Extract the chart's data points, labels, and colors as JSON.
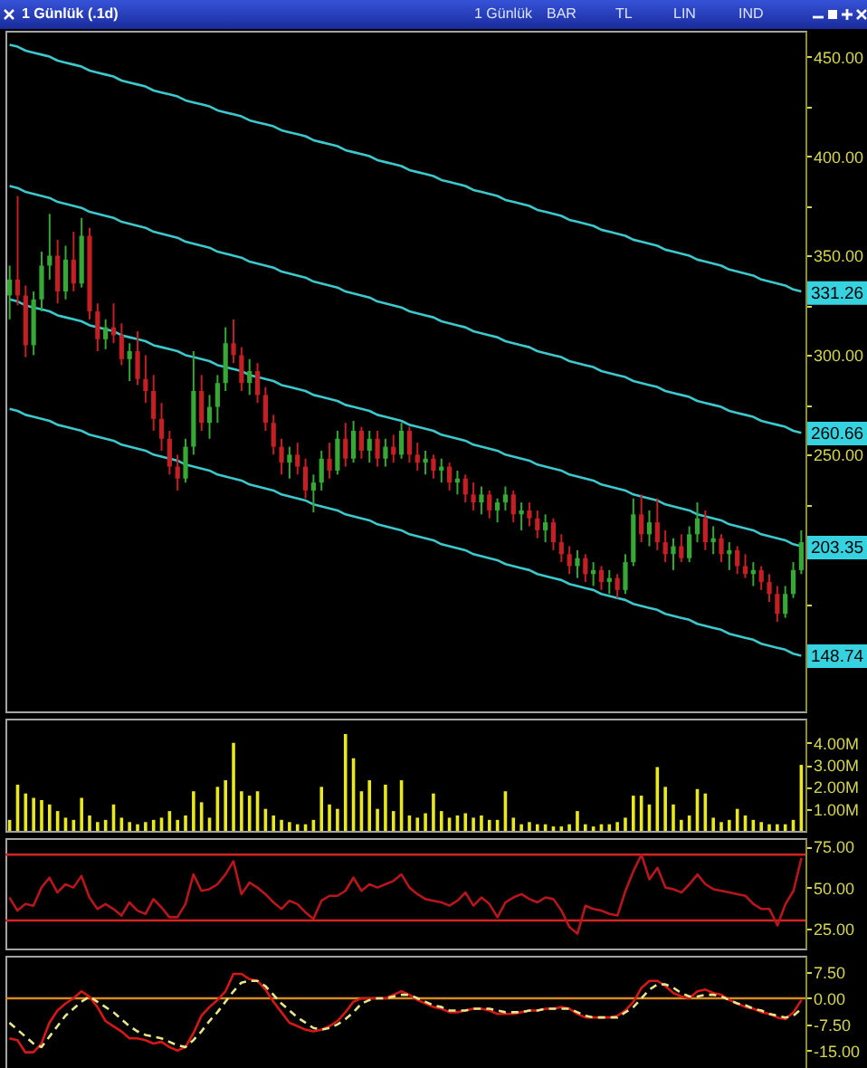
{
  "chart_data": [
    {
      "type": "candlestick",
      "title": "1 Günlük (.1d)",
      "annotations": [
        "1 Günlük",
        "BAR",
        "TL",
        "LIN",
        "IND",
        {
          "text": "331.26",
          "y": 331.26
        },
        {
          "text": "260.66",
          "y": 260.66
        },
        {
          "text": "203.35",
          "y": 203.35
        },
        {
          "text": "148.74",
          "y": 148.74
        }
      ],
      "categories": [
        null,
        null,
        null,
        null,
        null,
        null,
        null,
        null,
        null,
        null,
        null,
        null,
        null,
        null,
        null,
        null,
        null,
        null,
        null,
        null,
        null,
        null,
        null,
        null,
        null,
        null,
        null,
        null,
        null,
        null,
        null,
        null,
        null,
        null,
        null,
        null,
        null,
        null,
        null,
        null,
        null,
        null,
        null,
        null,
        null,
        null,
        null,
        null,
        null,
        null,
        null,
        null,
        null,
        null,
        null,
        null,
        null,
        null,
        null,
        null,
        null,
        null,
        null,
        null,
        null,
        null,
        null,
        null,
        null,
        null,
        null,
        null,
        null,
        null,
        null,
        null,
        null,
        null,
        null,
        null,
        null,
        null,
        null,
        null,
        null,
        null,
        null,
        null,
        null,
        null,
        null,
        null,
        null,
        null,
        null,
        null,
        null,
        null,
        null,
        null
      ],
      "ohlc": [
        [
          330,
          345,
          318,
          338
        ],
        [
          338,
          380,
          325,
          330
        ],
        [
          330,
          335,
          299,
          305
        ],
        [
          305,
          332,
          300,
          328
        ],
        [
          328,
          352,
          322,
          345
        ],
        [
          345,
          371,
          338,
          350
        ],
        [
          350,
          358,
          326,
          332
        ],
        [
          332,
          355,
          328,
          348
        ],
        [
          348,
          362,
          332,
          336
        ],
        [
          336,
          369,
          334,
          360
        ],
        [
          360,
          364,
          318,
          322
        ],
        [
          322,
          326,
          302,
          308
        ],
        [
          308,
          318,
          303,
          314
        ],
        [
          314,
          326,
          306,
          310
        ],
        [
          310,
          316,
          295,
          298
        ],
        [
          298,
          306,
          287,
          302
        ],
        [
          302,
          312,
          285,
          288
        ],
        [
          288,
          300,
          276,
          282
        ],
        [
          282,
          290,
          262,
          268
        ],
        [
          268,
          276,
          252,
          258
        ],
        [
          258,
          262,
          240,
          244
        ],
        [
          244,
          250,
          232,
          238
        ],
        [
          238,
          258,
          236,
          254
        ],
        [
          254,
          302,
          250,
          282
        ],
        [
          282,
          290,
          262,
          266
        ],
        [
          266,
          280,
          258,
          274
        ],
        [
          274,
          290,
          266,
          286
        ],
        [
          286,
          314,
          282,
          306
        ],
        [
          306,
          318,
          296,
          300
        ],
        [
          300,
          304,
          282,
          286
        ],
        [
          286,
          298,
          280,
          292
        ],
        [
          292,
          296,
          276,
          280
        ],
        [
          280,
          284,
          262,
          266
        ],
        [
          266,
          270,
          250,
          254
        ],
        [
          254,
          258,
          240,
          246
        ],
        [
          246,
          254,
          238,
          250
        ],
        [
          250,
          256,
          240,
          244
        ],
        [
          244,
          248,
          228,
          232
        ],
        [
          232,
          240,
          221,
          236
        ],
        [
          236,
          252,
          232,
          248
        ],
        [
          248,
          256,
          238,
          242
        ],
        [
          242,
          262,
          240,
          258
        ],
        [
          258,
          266,
          244,
          248
        ],
        [
          248,
          267,
          246,
          262
        ],
        [
          262,
          264,
          248,
          252
        ],
        [
          252,
          262,
          246,
          258
        ],
        [
          258,
          262,
          244,
          248
        ],
        [
          248,
          258,
          244,
          254
        ],
        [
          254,
          260,
          246,
          250
        ],
        [
          250,
          266,
          248,
          262
        ],
        [
          262,
          264,
          246,
          250
        ],
        [
          250,
          256,
          242,
          246
        ],
        [
          246,
          252,
          240,
          248
        ],
        [
          248,
          250,
          238,
          242
        ],
        [
          242,
          248,
          236,
          244
        ],
        [
          244,
          246,
          232,
          236
        ],
        [
          236,
          242,
          230,
          238
        ],
        [
          238,
          240,
          226,
          230
        ],
        [
          230,
          236,
          222,
          226
        ],
        [
          226,
          234,
          220,
          230
        ],
        [
          230,
          232,
          218,
          222
        ],
        [
          222,
          228,
          216,
          226
        ],
        [
          226,
          234,
          222,
          230
        ],
        [
          230,
          232,
          216,
          220
        ],
        [
          220,
          226,
          212,
          222
        ],
        [
          222,
          226,
          214,
          218
        ],
        [
          218,
          222,
          208,
          212
        ],
        [
          212,
          220,
          206,
          216
        ],
        [
          216,
          218,
          202,
          206
        ],
        [
          206,
          210,
          196,
          200
        ],
        [
          200,
          204,
          190,
          194
        ],
        [
          194,
          202,
          188,
          198
        ],
        [
          198,
          200,
          186,
          190
        ],
        [
          190,
          196,
          184,
          192
        ],
        [
          192,
          194,
          182,
          186
        ],
        [
          186,
          192,
          180,
          188
        ],
        [
          188,
          190,
          178,
          182
        ],
        [
          182,
          200,
          180,
          196
        ],
        [
          196,
          228,
          194,
          220
        ],
        [
          220,
          230,
          206,
          210
        ],
        [
          210,
          222,
          204,
          216
        ],
        [
          216,
          228,
          202,
          206
        ],
        [
          206,
          212,
          196,
          200
        ],
        [
          200,
          208,
          192,
          204
        ],
        [
          204,
          210,
          196,
          198
        ],
        [
          198,
          214,
          196,
          210
        ],
        [
          210,
          226,
          206,
          218
        ],
        [
          218,
          222,
          202,
          206
        ],
        [
          206,
          214,
          200,
          208
        ],
        [
          208,
          210,
          196,
          200
        ],
        [
          200,
          206,
          192,
          202
        ],
        [
          202,
          204,
          190,
          194
        ],
        [
          194,
          200,
          188,
          190
        ],
        [
          190,
          196,
          184,
          192
        ],
        [
          192,
          194,
          182,
          186
        ],
        [
          186,
          190,
          176,
          180
        ],
        [
          180,
          184,
          166,
          170
        ],
        [
          170,
          184,
          168,
          180
        ],
        [
          180,
          196,
          178,
          192
        ],
        [
          192,
          212,
          190,
          206
        ]
      ],
      "colors": [
        "#35a835",
        "#c41f24",
        "#c41f24",
        "#35a835",
        "#35a835",
        "#35a835",
        "#c41f24",
        "#35a835",
        "#c41f24",
        "#35a835",
        "#c41f24",
        "#c41f24",
        "#35a835",
        "#c41f24",
        "#c41f24",
        "#35a835",
        "#c41f24",
        "#c41f24",
        "#c41f24",
        "#c41f24",
        "#c41f24",
        "#c41f24",
        "#35a835",
        "#35a835",
        "#c41f24",
        "#35a835",
        "#35a835",
        "#35a835",
        "#c41f24",
        "#c41f24",
        "#35a835",
        "#c41f24",
        "#c41f24",
        "#c41f24",
        "#c41f24",
        "#35a835",
        "#c41f24",
        "#c41f24",
        "#35a835",
        "#35a835",
        "#c41f24",
        "#35a835",
        "#c41f24",
        "#35a835",
        "#c41f24",
        "#35a835",
        "#c41f24",
        "#35a835",
        "#c41f24",
        "#35a835",
        "#c41f24",
        "#c41f24",
        "#35a835",
        "#c41f24",
        "#35a835",
        "#c41f24",
        "#35a835",
        "#c41f24",
        "#c41f24",
        "#35a835",
        "#c41f24",
        "#35a835",
        "#35a835",
        "#c41f24",
        "#35a835",
        "#c41f24",
        "#c41f24",
        "#35a835",
        "#c41f24",
        "#c41f24",
        "#c41f24",
        "#35a835",
        "#c41f24",
        "#35a835",
        "#c41f24",
        "#35a835",
        "#c41f24",
        "#35a835",
        "#35a835",
        "#c41f24",
        "#35a835",
        "#c41f24",
        "#c41f24",
        "#35a835",
        "#c41f24",
        "#35a835",
        "#35a835",
        "#c41f24",
        "#35a835",
        "#c41f24",
        "#35a835",
        "#c41f24",
        "#c41f24",
        "#35a835",
        "#c41f24",
        "#c41f24",
        "#c41f24",
        "#35a835",
        "#35a835",
        "#35a835"
      ],
      "series": [
        {
          "type": "line",
          "color": "#3cc8cc",
          "values": [
            456,
            455,
            453,
            452,
            451,
            450,
            448,
            447,
            446,
            445,
            443,
            442,
            441,
            440,
            438,
            437,
            436,
            435,
            433,
            432,
            431,
            430,
            428,
            427,
            426,
            425,
            423,
            422,
            421,
            420,
            418,
            417,
            416,
            415,
            413,
            412,
            411,
            410,
            408,
            407,
            406,
            405,
            403,
            402,
            401,
            400,
            398,
            397,
            396,
            395,
            393,
            392,
            391,
            390,
            388,
            387,
            386,
            385,
            383,
            382,
            381,
            380,
            378,
            377,
            376,
            375,
            373,
            372,
            371,
            370,
            368,
            367,
            366,
            365,
            363,
            362,
            361,
            360,
            358,
            357,
            356,
            355,
            353,
            352,
            351,
            350,
            348,
            347,
            346,
            345,
            343,
            342,
            341,
            340,
            338,
            337,
            336,
            335,
            333,
            332
          ]
        },
        {
          "type": "line",
          "color": "#3cc8cc",
          "values": [
            385,
            384,
            382,
            381,
            380,
            379,
            377,
            376,
            375,
            374,
            372,
            371,
            370,
            369,
            367,
            366,
            365,
            364,
            362,
            361,
            360,
            359,
            357,
            356,
            355,
            354,
            352,
            351,
            350,
            349,
            347,
            346,
            345,
            344,
            342,
            341,
            340,
            339,
            337,
            336,
            335,
            334,
            332,
            331,
            330,
            329,
            327,
            326,
            325,
            324,
            322,
            321,
            320,
            319,
            317,
            316,
            315,
            314,
            312,
            311,
            310,
            309,
            307,
            306,
            305,
            304,
            302,
            301,
            300,
            299,
            297,
            296,
            295,
            294,
            292,
            291,
            290,
            289,
            287,
            286,
            285,
            284,
            282,
            281,
            280,
            279,
            277,
            276,
            275,
            274,
            272,
            271,
            270,
            269,
            267,
            266,
            265,
            264,
            262,
            261
          ]
        },
        {
          "type": "line",
          "color": "#3cc8cc",
          "values": [
            328,
            327,
            325,
            324,
            323,
            322,
            320,
            319,
            318,
            317,
            315,
            314,
            313,
            312,
            310,
            309,
            308,
            307,
            305,
            304,
            303,
            302,
            300,
            299,
            298,
            297,
            295,
            294,
            293,
            292,
            290,
            289,
            288,
            287,
            285,
            284,
            283,
            282,
            280,
            279,
            278,
            277,
            275,
            274,
            273,
            272,
            270,
            269,
            268,
            267,
            265,
            264,
            263,
            262,
            260,
            259,
            258,
            257,
            255,
            254,
            253,
            252,
            250,
            249,
            248,
            247,
            245,
            244,
            243,
            242,
            240,
            239,
            238,
            237,
            235,
            234,
            233,
            232,
            230,
            229,
            228,
            227,
            225,
            224,
            223,
            222,
            220,
            219,
            218,
            217,
            215,
            214,
            213,
            212,
            210,
            209,
            208,
            207,
            205,
            204
          ]
        },
        {
          "type": "line",
          "color": "#3cc8cc",
          "values": [
            273,
            272,
            270,
            269,
            268,
            267,
            265,
            264,
            263,
            262,
            260,
            259,
            258,
            257,
            255,
            254,
            253,
            252,
            250,
            249,
            248,
            247,
            245,
            244,
            243,
            242,
            240,
            239,
            238,
            237,
            235,
            234,
            233,
            232,
            230,
            229,
            228,
            227,
            225,
            224,
            223,
            222,
            220,
            219,
            218,
            217,
            215,
            214,
            213,
            212,
            210,
            209,
            208,
            207,
            205,
            204,
            203,
            202,
            200,
            199,
            198,
            197,
            195,
            194,
            193,
            192,
            190,
            189,
            188,
            187,
            185,
            184,
            183,
            182,
            180,
            179,
            178,
            177,
            175,
            174,
            173,
            172,
            170,
            169,
            168,
            167,
            165,
            164,
            163,
            162,
            160,
            159,
            158,
            157,
            155,
            154,
            153,
            152,
            150,
            149
          ]
        }
      ],
      "ylim": [
        121,
        463
      ],
      "yticks": [
        {
          "value": 175,
          "label": null
        },
        {
          "value": 225,
          "label": null
        },
        {
          "value": 250,
          "label": "250.00"
        },
        {
          "value": 275,
          "label": null
        },
        {
          "value": 300,
          "label": "300.00"
        },
        {
          "value": 325,
          "label": null
        },
        {
          "value": 350,
          "label": "350.00"
        },
        {
          "value": 375,
          "label": null
        },
        {
          "value": 400,
          "label": "400.00"
        },
        {
          "value": 425,
          "label": null
        },
        {
          "value": 450,
          "label": "450.00"
        }
      ],
      "tick_labels": "y"
    },
    {
      "type": "bar",
      "categories": [
        null,
        null,
        null,
        null,
        null,
        null,
        null,
        null,
        null,
        null,
        null,
        null,
        null,
        null,
        null,
        null,
        null,
        null,
        null,
        null,
        null,
        null,
        null,
        null,
        null,
        null,
        null,
        null,
        null,
        null,
        null,
        null,
        null,
        null,
        null,
        null,
        null,
        null,
        null,
        null,
        null,
        null,
        null,
        null,
        null,
        null,
        null,
        null,
        null,
        null,
        null,
        null,
        null,
        null,
        null,
        null,
        null,
        null,
        null,
        null,
        null,
        null,
        null,
        null,
        null,
        null,
        null,
        null,
        null,
        null,
        null,
        null,
        null,
        null,
        null,
        null,
        null,
        null,
        null,
        null,
        null,
        null,
        null,
        null,
        null,
        null,
        null,
        null,
        null,
        null,
        null,
        null,
        null,
        null,
        null,
        null,
        null,
        null,
        null,
        null
      ],
      "values": [
        0.5,
        2.1,
        1.7,
        1.5,
        1.4,
        1.2,
        0.9,
        0.6,
        0.5,
        1.5,
        0.7,
        0.4,
        0.5,
        1.2,
        0.6,
        0.4,
        0.3,
        0.4,
        0.5,
        0.6,
        0.9,
        0.5,
        0.7,
        1.8,
        1.3,
        0.6,
        2.0,
        2.3,
        4.0,
        1.8,
        1.6,
        1.8,
        1.0,
        0.7,
        0.5,
        0.4,
        0.3,
        0.3,
        0.5,
        2.0,
        1.2,
        1.0,
        4.4,
        3.3,
        1.8,
        2.3,
        1.0,
        2.1,
        0.9,
        2.3,
        0.7,
        0.6,
        0.8,
        1.7,
        0.9,
        0.6,
        0.7,
        0.8,
        0.6,
        0.7,
        0.5,
        0.5,
        1.8,
        0.6,
        0.3,
        0.4,
        0.3,
        0.3,
        0.2,
        0.2,
        0.3,
        0.9,
        0.3,
        0.2,
        0.3,
        0.3,
        0.4,
        0.6,
        1.6,
        1.6,
        1.2,
        2.9,
        2.0,
        1.2,
        0.5,
        0.7,
        1.9,
        1.7,
        0.6,
        0.4,
        0.5,
        1.0,
        0.7,
        0.5,
        0.4,
        0.3,
        0.3,
        0.3,
        0.5,
        3.0
      ],
      "color": "#e8e81c",
      "ylim": [
        0,
        5.1
      ],
      "yticks": [
        {
          "value": 1,
          "label": "1.00M"
        },
        {
          "value": 2,
          "label": "2.00M"
        },
        {
          "value": 3,
          "label": "3.00M"
        },
        {
          "value": 4,
          "label": "4.00M"
        }
      ],
      "tick_labels": "y"
    },
    {
      "type": "line",
      "categories": [
        null,
        null,
        null,
        null,
        null,
        null,
        null,
        null,
        null,
        null,
        null,
        null,
        null,
        null,
        null,
        null,
        null,
        null,
        null,
        null,
        null,
        null,
        null,
        null,
        null,
        null,
        null,
        null,
        null,
        null,
        null,
        null,
        null,
        null,
        null,
        null,
        null,
        null,
        null,
        null,
        null,
        null,
        null,
        null,
        null,
        null,
        null,
        null,
        null,
        null,
        null,
        null,
        null,
        null,
        null,
        null,
        null,
        null,
        null,
        null,
        null,
        null,
        null,
        null,
        null,
        null,
        null,
        null,
        null,
        null,
        null,
        null,
        null,
        null,
        null,
        null,
        null,
        null,
        null,
        null,
        null,
        null,
        null,
        null,
        null,
        null,
        null,
        null,
        null,
        null,
        null,
        null,
        null,
        null,
        null,
        null,
        null,
        null,
        null,
        null
      ],
      "series": [
        {
          "color": "#b8161c",
          "values": [
            44,
            36,
            40,
            39,
            50,
            56,
            47,
            52,
            50,
            57,
            44,
            37,
            40,
            37,
            33,
            41,
            36,
            34,
            43,
            38,
            32,
            32,
            40,
            58,
            48,
            49,
            52,
            58,
            66,
            46,
            53,
            50,
            46,
            41,
            37,
            42,
            40,
            35,
            31,
            42,
            45,
            45,
            48,
            56,
            48,
            52,
            50,
            52,
            54,
            58,
            50,
            46,
            43,
            42,
            41,
            39,
            42,
            47,
            39,
            44,
            40,
            32,
            41,
            44,
            46,
            43,
            41,
            44,
            43,
            36,
            26,
            22,
            39,
            37,
            36,
            34,
            33,
            48,
            60,
            70,
            55,
            62,
            50,
            49,
            47,
            52,
            58,
            52,
            49,
            48,
            47,
            46,
            45,
            40,
            37,
            37,
            27,
            40,
            48,
            68
          ]
        }
      ],
      "ylim": [
        13,
        80
      ],
      "yticks": [
        {
          "value": 25,
          "label": "25.00"
        },
        {
          "value": 50,
          "label": "50.00"
        },
        {
          "value": 75,
          "label": "75.00"
        }
      ],
      "ref_lines": [
        {
          "axis": "y",
          "value": 70,
          "color": "#d42424"
        },
        {
          "axis": "y",
          "value": 30,
          "color": "#d42424"
        }
      ],
      "tick_labels": "y"
    },
    {
      "type": "line",
      "categories": [
        null,
        null,
        null,
        null,
        null,
        null,
        null,
        null,
        null,
        null,
        null,
        null,
        null,
        null,
        null,
        null,
        null,
        null,
        null,
        null,
        null,
        null,
        null,
        null,
        null,
        null,
        null,
        null,
        null,
        null,
        null,
        null,
        null,
        null,
        null,
        null,
        null,
        null,
        null,
        null,
        null,
        null,
        null,
        null,
        null,
        null,
        null,
        null,
        null,
        null,
        null,
        null,
        null,
        null,
        null,
        null,
        null,
        null,
        null,
        null,
        null,
        null,
        null,
        null,
        null,
        null,
        null,
        null,
        null,
        null,
        null,
        null,
        null,
        null,
        null,
        null,
        null,
        null,
        null,
        null,
        null,
        null,
        null,
        null,
        null,
        null,
        null,
        null,
        null,
        null,
        null,
        null,
        null,
        null,
        null,
        null,
        null,
        null,
        null,
        null
      ],
      "series": [
        {
          "color": "#d41818",
          "line_style": "solid",
          "values": [
            -11.5,
            -12,
            -15.5,
            -15.5,
            -13,
            -7,
            -3.5,
            -1.5,
            0,
            2,
            0.5,
            -2.5,
            -6.5,
            -8,
            -9.5,
            -11.5,
            -11.5,
            -12,
            -13,
            -12.5,
            -14,
            -15,
            -14,
            -10,
            -5,
            -2.5,
            -0.5,
            2,
            7,
            7,
            5.5,
            5,
            2.5,
            -1,
            -4,
            -7,
            -8,
            -9,
            -9.5,
            -9,
            -8,
            -6.5,
            -4,
            -1,
            0,
            0,
            0,
            0,
            1,
            2,
            1,
            -0.5,
            -1.5,
            -2.5,
            -3,
            -4,
            -4,
            -3.5,
            -3,
            -3,
            -3.5,
            -4.5,
            -4.5,
            -4.5,
            -4,
            -3.5,
            -3.5,
            -3,
            -3,
            -2.5,
            -3,
            -4.5,
            -5.5,
            -5.5,
            -5.5,
            -5.5,
            -5,
            -3.5,
            -1,
            3,
            5,
            5,
            3.5,
            1.5,
            0.5,
            0,
            2,
            2.5,
            1.5,
            1,
            -0.5,
            -1.5,
            -2.5,
            -3,
            -4,
            -4.5,
            -5.5,
            -6,
            -4,
            -0.5
          ]
        },
        {
          "color": "#e6e68c",
          "line_style": "dashed",
          "values": [
            -7,
            -9,
            -11,
            -13,
            -14,
            -11,
            -8,
            -5,
            -3,
            -1,
            0.5,
            -1,
            -2.5,
            -4,
            -6,
            -8,
            -9.5,
            -10.5,
            -11,
            -11.5,
            -12.5,
            -13.5,
            -14,
            -12,
            -9.5,
            -6.5,
            -4,
            -1,
            2,
            4.5,
            5,
            5,
            3.5,
            1,
            -1.5,
            -3.5,
            -5.5,
            -7,
            -8.5,
            -9,
            -8.5,
            -7.5,
            -6,
            -4,
            -1.5,
            -0.5,
            0,
            0,
            0.5,
            1,
            1,
            0,
            -1,
            -2,
            -2.5,
            -3.5,
            -3.5,
            -3.5,
            -3,
            -3,
            -3,
            -3.5,
            -4,
            -4,
            -4,
            -3.5,
            -3.5,
            -3,
            -3,
            -3,
            -3,
            -4,
            -5,
            -5.5,
            -5.5,
            -5.5,
            -5.5,
            -4,
            -2.5,
            0,
            2.5,
            4,
            4,
            3,
            1.5,
            0.5,
            0.5,
            1,
            1,
            0.5,
            -0.5,
            -1.5,
            -2,
            -3,
            -3.5,
            -4.5,
            -5,
            -5.5,
            -5,
            -3
          ]
        }
      ],
      "ylim": [
        -20,
        12.2
      ],
      "yticks": [
        {
          "value": 7.5,
          "label": "7.50"
        },
        {
          "value": 0,
          "label": "0.00"
        },
        {
          "value": -7.5,
          "label": "-7.50"
        },
        {
          "value": -15,
          "label": "-15.00"
        }
      ],
      "ref_lines": [
        {
          "axis": "y",
          "value": 0,
          "color": "#d88a1e"
        }
      ],
      "tick_labels": "y"
    }
  ]
}
